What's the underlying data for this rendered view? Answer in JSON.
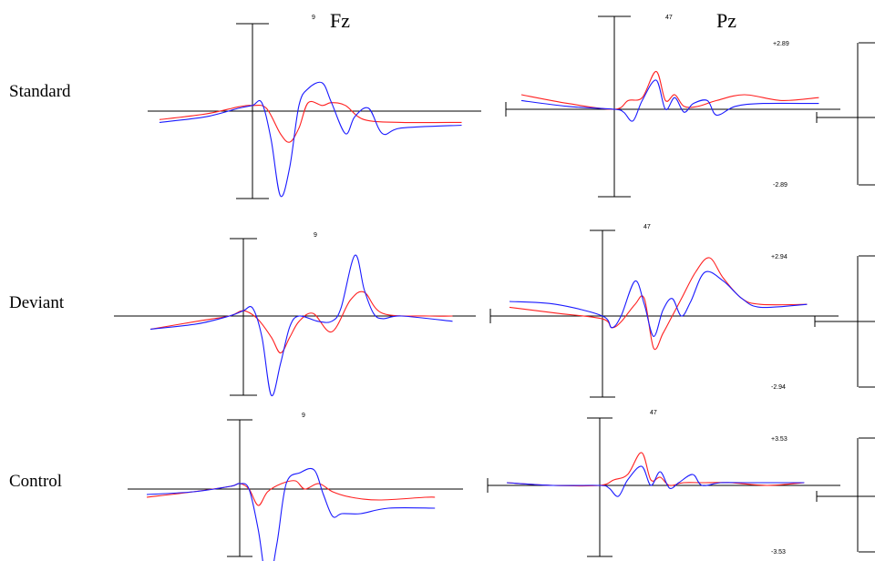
{
  "columns": [
    "Fz",
    "Pz"
  ],
  "rows": [
    "Standard",
    "Deviant",
    "Control"
  ],
  "colors": {
    "red": "#ff2020",
    "blue": "#1a1aff",
    "axis": "#000000"
  },
  "chart_data": [
    {
      "type": "line",
      "column": "Fz",
      "row": "Standard",
      "electrode_number": "9",
      "series": [
        {
          "color": "red",
          "x": [
            -1.0,
            -0.5,
            -0.15,
            0,
            0.15,
            0.3,
            0.4,
            0.5,
            0.6,
            0.75,
            0.85,
            1.0,
            1.2,
            1.6,
            2.25
          ],
          "y": [
            -0.3,
            -0.1,
            0.15,
            0.2,
            0.1,
            -0.8,
            -1.1,
            -0.6,
            0.3,
            0.2,
            0.3,
            0.2,
            -0.3,
            -0.4,
            -0.4
          ]
        },
        {
          "color": "blue",
          "x": [
            -1.0,
            -0.5,
            -0.15,
            0,
            0.1,
            0.2,
            0.3,
            0.4,
            0.5,
            0.6,
            0.75,
            0.85,
            1.0,
            1.1,
            1.25,
            1.4,
            1.6,
            2.25
          ],
          "y": [
            -0.4,
            -0.2,
            0.1,
            0.2,
            0.3,
            -1.0,
            -3.0,
            -2.0,
            0.2,
            0.8,
            1.0,
            0.3,
            -0.8,
            -0.2,
            0.1,
            -0.8,
            -0.6,
            -0.5
          ]
        }
      ]
    },
    {
      "type": "line",
      "column": "Pz",
      "row": "Standard",
      "electrode_number": "47",
      "scale": [
        "+2.89",
        "-2.89"
      ],
      "series": [
        {
          "color": "red",
          "x": [
            -1.0,
            -0.5,
            0,
            0.15,
            0.3,
            0.45,
            0.55,
            0.65,
            0.75,
            0.9,
            1.1,
            1.4,
            1.8,
            2.2
          ],
          "y": [
            0.5,
            0.2,
            0.0,
            0.3,
            0.4,
            1.3,
            0.3,
            0.5,
            0.1,
            0.1,
            0.3,
            0.5,
            0.3,
            0.4
          ]
        },
        {
          "color": "blue",
          "x": [
            -1.0,
            -0.5,
            0,
            0.1,
            0.2,
            0.3,
            0.45,
            0.55,
            0.65,
            0.75,
            0.85,
            1.0,
            1.1,
            1.3,
            1.6,
            2.2
          ],
          "y": [
            0.3,
            0.1,
            0.0,
            -0.1,
            -0.4,
            0.3,
            1.0,
            0.0,
            0.4,
            -0.1,
            0.2,
            0.3,
            -0.2,
            0.1,
            0.2,
            0.2
          ]
        }
      ]
    },
    {
      "type": "line",
      "column": "Fz",
      "row": "Deviant",
      "electrode_number": "9",
      "series": [
        {
          "color": "red",
          "x": [
            -1.0,
            -0.5,
            -0.15,
            0,
            0.15,
            0.3,
            0.4,
            0.5,
            0.6,
            0.75,
            0.95,
            1.15,
            1.3,
            1.5,
            2.0,
            2.25
          ],
          "y": [
            -0.5,
            -0.2,
            0.0,
            0.2,
            -0.1,
            -0.8,
            -1.4,
            -0.8,
            -0.2,
            0.1,
            -0.6,
            0.6,
            0.9,
            0.1,
            0.0,
            0.0
          ]
        },
        {
          "color": "blue",
          "x": [
            -1.0,
            -0.5,
            -0.15,
            0,
            0.1,
            0.2,
            0.3,
            0.4,
            0.5,
            0.6,
            0.8,
            0.95,
            1.05,
            1.2,
            1.3,
            1.4,
            1.5,
            1.7,
            2.25
          ],
          "y": [
            -0.5,
            -0.3,
            0.0,
            0.2,
            0.3,
            -0.8,
            -3.0,
            -1.8,
            -0.4,
            0.0,
            -0.2,
            -0.2,
            0.3,
            2.3,
            1.0,
            0.1,
            -0.1,
            0.0,
            -0.2
          ]
        }
      ]
    },
    {
      "type": "line",
      "column": "Pz",
      "row": "Deviant",
      "electrode_number": "47",
      "scale": [
        "+2.94",
        "-2.94"
      ],
      "series": [
        {
          "color": "red",
          "x": [
            -1.0,
            -0.5,
            0,
            0.1,
            0.2,
            0.35,
            0.45,
            0.55,
            0.65,
            0.75,
            0.85,
            1.0,
            1.15,
            1.3,
            1.5,
            1.7,
            2.2
          ],
          "y": [
            0.3,
            0.1,
            -0.1,
            -0.4,
            -0.2,
            0.4,
            0.6,
            -1.1,
            -0.6,
            0.0,
            0.6,
            1.5,
            2.0,
            1.3,
            0.6,
            0.4,
            0.4
          ]
        },
        {
          "color": "blue",
          "x": [
            -1.0,
            -0.5,
            0,
            0.1,
            0.2,
            0.35,
            0.45,
            0.55,
            0.65,
            0.75,
            0.85,
            0.95,
            1.1,
            1.3,
            1.5,
            1.7,
            2.2
          ],
          "y": [
            0.5,
            0.4,
            0.0,
            -0.4,
            0.0,
            1.2,
            0.4,
            -0.7,
            0.2,
            0.6,
            0.0,
            0.5,
            1.5,
            1.2,
            0.6,
            0.3,
            0.4
          ]
        }
      ]
    },
    {
      "type": "line",
      "column": "Fz",
      "row": "Control",
      "electrode_number": "9",
      "series": [
        {
          "color": "red",
          "x": [
            -1.0,
            -0.5,
            -0.1,
            0,
            0.1,
            0.2,
            0.3,
            0.45,
            0.6,
            0.7,
            0.85,
            1.0,
            1.2,
            1.5,
            2.0,
            2.1
          ],
          "y": [
            -0.3,
            -0.1,
            0.1,
            0.2,
            0.0,
            -0.6,
            -0.1,
            0.2,
            0.3,
            0.0,
            0.2,
            -0.1,
            -0.3,
            -0.4,
            -0.3,
            -0.3
          ]
        },
        {
          "color": "blue",
          "x": [
            -1.0,
            -0.5,
            -0.1,
            0,
            0.1,
            0.2,
            0.3,
            0.4,
            0.5,
            0.65,
            0.8,
            0.9,
            1.0,
            1.1,
            1.3,
            1.6,
            2.1
          ],
          "y": [
            -0.2,
            -0.1,
            0.1,
            0.2,
            0.0,
            -1.5,
            -3.5,
            -2.0,
            0.2,
            0.6,
            0.7,
            -0.2,
            -1.0,
            -0.9,
            -0.9,
            -0.7,
            -0.7
          ]
        }
      ]
    },
    {
      "type": "line",
      "column": "Pz",
      "row": "Control",
      "electrode_number": "47",
      "scale": [
        "+3.53",
        "-3.53"
      ],
      "series": [
        {
          "color": "red",
          "x": [
            -1.0,
            -0.5,
            0,
            0.15,
            0.3,
            0.45,
            0.55,
            0.65,
            0.75,
            0.9,
            1.1,
            1.4,
            1.8,
            2.2
          ],
          "y": [
            0.1,
            0.0,
            0.0,
            0.2,
            0.4,
            1.2,
            0.2,
            0.3,
            0.0,
            0.1,
            0.1,
            0.1,
            0.0,
            0.1
          ]
        },
        {
          "color": "blue",
          "x": [
            -1.0,
            -0.5,
            0,
            0.1,
            0.2,
            0.3,
            0.45,
            0.55,
            0.65,
            0.75,
            0.85,
            1.0,
            1.1,
            1.3,
            1.6,
            2.2
          ],
          "y": [
            0.1,
            0.0,
            0.0,
            -0.1,
            -0.4,
            0.2,
            0.7,
            0.0,
            0.5,
            -0.1,
            0.1,
            0.4,
            0.0,
            0.1,
            0.1,
            0.1
          ]
        }
      ]
    }
  ]
}
